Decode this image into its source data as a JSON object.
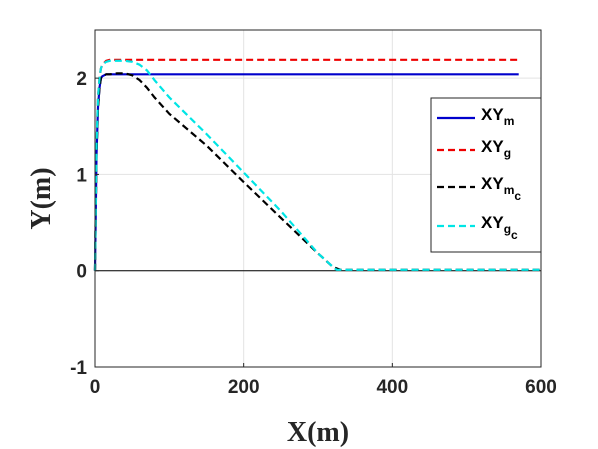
{
  "chart_data": {
    "type": "line",
    "xlabel": "X(m)",
    "ylabel": "Y(m)",
    "xlim": [
      0,
      600
    ],
    "ylim": [
      -1,
      2.5
    ],
    "xticks": [
      0,
      200,
      400,
      600
    ],
    "yticks": [
      -1,
      0,
      1,
      2
    ],
    "xtick_labels": [
      "0",
      "200",
      "400",
      "600"
    ],
    "ytick_labels": [
      "-1",
      "0",
      "1",
      "2"
    ],
    "grid": true,
    "legend_position": "right",
    "zero_line": true,
    "series": [
      {
        "name": "XY",
        "subscript": "m",
        "color": "#0000cc",
        "style": "solid",
        "x": [
          0,
          2,
          4,
          6,
          8,
          10,
          15,
          20,
          30,
          100,
          300,
          570
        ],
        "y": [
          0,
          1.2,
          1.7,
          1.9,
          2.0,
          2.02,
          2.04,
          2.04,
          2.04,
          2.04,
          2.04,
          2.04
        ]
      },
      {
        "name": "XY",
        "subscript": "g",
        "color": "#ee0000",
        "style": "dashed",
        "x": [
          0,
          2,
          4,
          6,
          8,
          10,
          15,
          20,
          30,
          100,
          300,
          570
        ],
        "y": [
          0,
          1.3,
          1.8,
          2.0,
          2.1,
          2.14,
          2.18,
          2.19,
          2.19,
          2.19,
          2.19,
          2.19
        ]
      },
      {
        "name": "XY",
        "subscript": "m",
        "subscript2": "c",
        "color": "#000000",
        "style": "dashed",
        "x": [
          0,
          2,
          4,
          6,
          8,
          10,
          15,
          20,
          30,
          40,
          50,
          60,
          70,
          80,
          100,
          150,
          200,
          250,
          300,
          320,
          330,
          340,
          400,
          500,
          600
        ],
        "y": [
          0,
          1.2,
          1.7,
          1.9,
          2.0,
          2.02,
          2.04,
          2.04,
          2.05,
          2.05,
          2.03,
          1.98,
          1.9,
          1.8,
          1.63,
          1.3,
          0.92,
          0.55,
          0.18,
          0.04,
          0.01,
          0.01,
          0.01,
          0.01,
          0.01
        ]
      },
      {
        "name": "XY",
        "subscript": "g",
        "subscript2": "c",
        "color": "#00e5e5",
        "style": "dashed",
        "x": [
          0,
          2,
          4,
          6,
          8,
          10,
          15,
          20,
          30,
          40,
          50,
          60,
          70,
          80,
          100,
          150,
          200,
          250,
          300,
          320,
          325,
          340,
          400,
          500,
          600
        ],
        "y": [
          0,
          1.3,
          1.8,
          2.0,
          2.1,
          2.14,
          2.17,
          2.18,
          2.18,
          2.18,
          2.17,
          2.14,
          2.08,
          1.98,
          1.8,
          1.42,
          1.02,
          0.62,
          0.18,
          0.04,
          0.01,
          0.01,
          0.01,
          0.01,
          0.01
        ]
      }
    ]
  }
}
